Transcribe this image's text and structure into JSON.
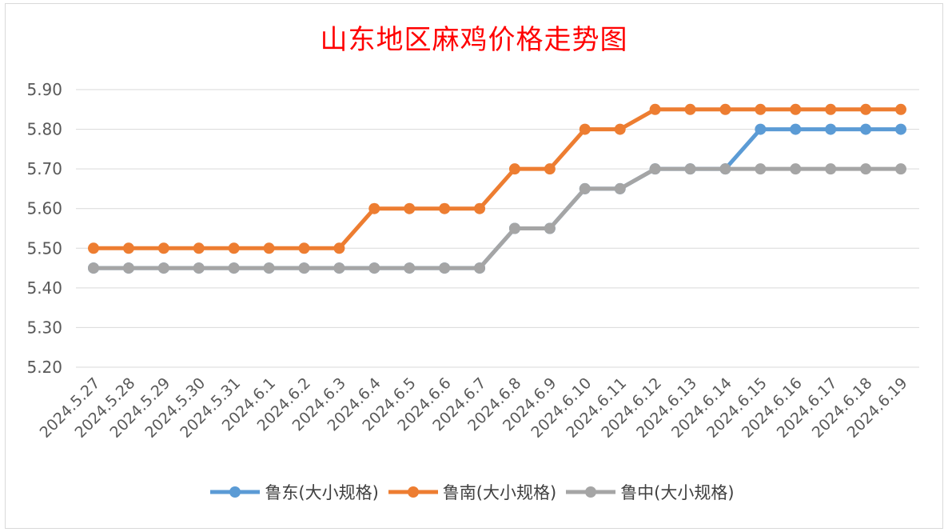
{
  "chart_data": {
    "type": "line",
    "title": "山东地区麻鸡价格走势图",
    "xlabel": "",
    "ylabel": "",
    "categories": [
      "2024.5.27",
      "2024.5.28",
      "2024.5.29",
      "2024.5.30",
      "2024.5.31",
      "2024.6.1",
      "2024.6.2",
      "2024.6.3",
      "2024.6.4",
      "2024.6.5",
      "2024.6.6",
      "2024.6.7",
      "2024.6.8",
      "2024.6.9",
      "2024.6.10",
      "2024.6.11",
      "2024.6.12",
      "2024.6.13",
      "2024.6.14",
      "2024.6.15",
      "2024.6.16",
      "2024.6.17",
      "2024.6.18",
      "2024.6.19"
    ],
    "ylim": [
      5.2,
      5.9
    ],
    "y_ticks": [
      "5.20",
      "5.30",
      "5.40",
      "5.50",
      "5.60",
      "5.70",
      "5.80",
      "5.90"
    ],
    "grid": true,
    "legend_position": "bottom",
    "series": [
      {
        "name": "鲁东(大小规格)",
        "color": "#5b9bd5",
        "values": [
          5.45,
          5.45,
          5.45,
          5.45,
          5.45,
          5.45,
          5.45,
          5.45,
          5.45,
          5.45,
          5.45,
          5.45,
          5.55,
          5.55,
          5.65,
          5.65,
          5.7,
          5.7,
          5.7,
          5.8,
          5.8,
          5.8,
          5.8,
          5.8
        ]
      },
      {
        "name": "鲁南(大小规格)",
        "color": "#ed7d31",
        "values": [
          5.5,
          5.5,
          5.5,
          5.5,
          5.5,
          5.5,
          5.5,
          5.5,
          5.6,
          5.6,
          5.6,
          5.6,
          5.7,
          5.7,
          5.8,
          5.8,
          5.85,
          5.85,
          5.85,
          5.85,
          5.85,
          5.85,
          5.85,
          5.85
        ]
      },
      {
        "name": "鲁中(大小规格)",
        "color": "#a5a5a5",
        "values": [
          5.45,
          5.45,
          5.45,
          5.45,
          5.45,
          5.45,
          5.45,
          5.45,
          5.45,
          5.45,
          5.45,
          5.45,
          5.55,
          5.55,
          5.65,
          5.65,
          5.7,
          5.7,
          5.7,
          5.7,
          5.7,
          5.7,
          5.7,
          5.7
        ]
      }
    ]
  }
}
